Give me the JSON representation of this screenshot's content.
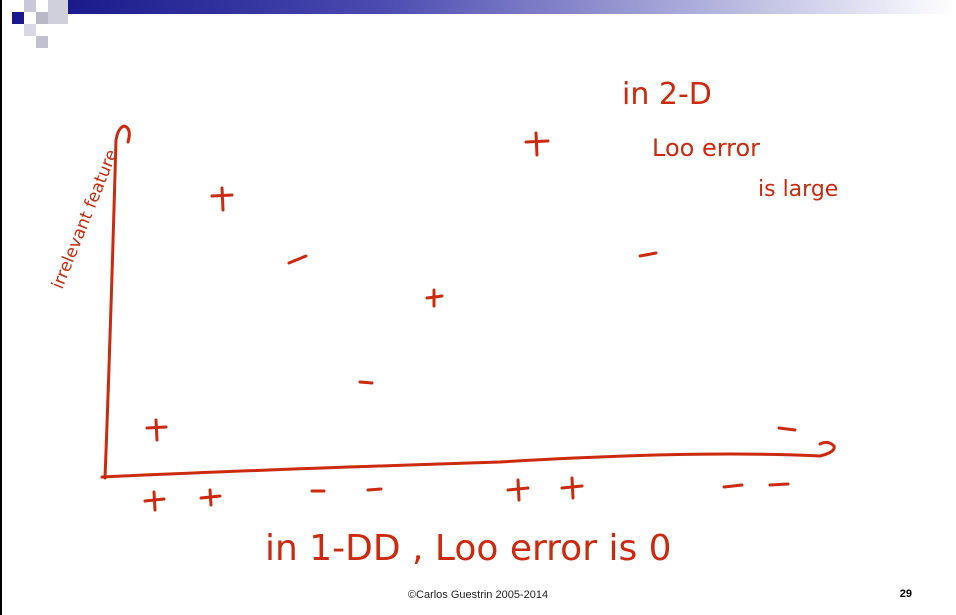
{
  "slide": {
    "annotations": {
      "in_2d": "in 2-D",
      "loo_error_2d": "Loo error",
      "is_large": "is large",
      "y_axis_label": "irrelevant feature",
      "in_1d": "in 1-DD , Loo error is 0"
    },
    "footer": {
      "copyright": "©Carlos Guestrin 2005-2014",
      "page_number": "29"
    },
    "colors": {
      "ink": "#cc2a0e",
      "title_bar_dark": "#1a1a8c",
      "title_bar_light": "#ffffff"
    }
  }
}
